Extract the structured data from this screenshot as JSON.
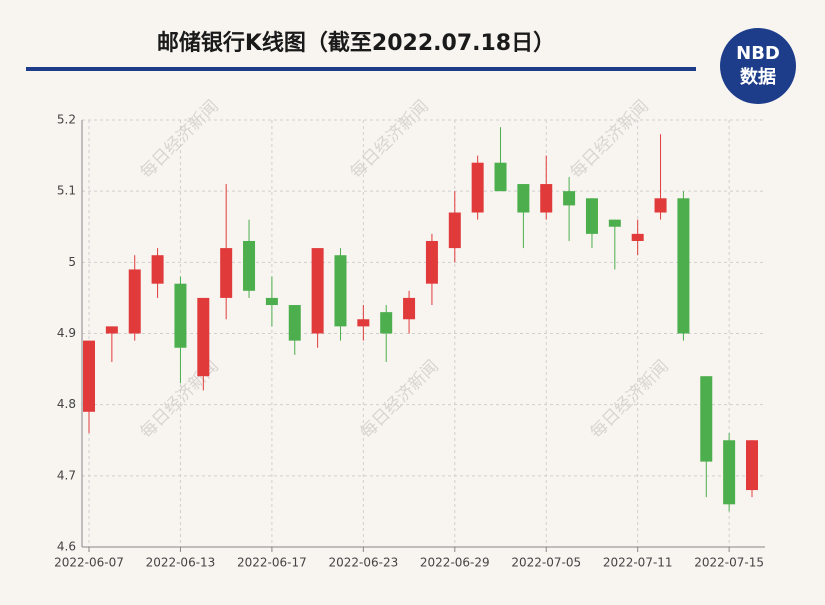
{
  "chart_data": {
    "type": "candlestick",
    "title": "邮储银行K线图（截至2022.07.18日）",
    "categories": [
      "2022-06-07",
      null,
      null,
      null,
      "2022-06-13",
      null,
      null,
      null,
      "2022-06-17",
      null,
      null,
      null,
      "2022-06-23",
      null,
      null,
      null,
      "2022-06-29",
      null,
      null,
      null,
      "2022-07-05",
      null,
      null,
      null,
      "2022-07-11",
      null,
      null,
      null,
      "2022-07-15",
      null
    ],
    "open": [
      4.79,
      4.9,
      4.9,
      4.97,
      4.97,
      4.84,
      4.95,
      5.03,
      4.95,
      4.94,
      4.9,
      5.01,
      4.91,
      4.93,
      4.92,
      4.97,
      5.02,
      5.07,
      5.14,
      5.11,
      5.07,
      5.1,
      5.09,
      5.06,
      5.03,
      5.07,
      5.09,
      4.84,
      4.75,
      4.68
    ],
    "high": [
      4.89,
      4.91,
      5.01,
      5.02,
      4.98,
      4.95,
      5.11,
      5.06,
      4.98,
      4.94,
      5.02,
      5.02,
      4.94,
      4.94,
      4.96,
      5.04,
      5.1,
      5.15,
      5.19,
      5.11,
      5.15,
      5.12,
      5.09,
      5.06,
      5.06,
      5.18,
      5.1,
      4.84,
      4.76,
      4.75
    ],
    "low": [
      4.76,
      4.86,
      4.89,
      4.95,
      4.83,
      4.82,
      4.92,
      4.95,
      4.91,
      4.87,
      4.88,
      4.89,
      4.89,
      4.86,
      4.9,
      4.94,
      5.0,
      5.06,
      5.1,
      5.02,
      5.06,
      5.03,
      5.02,
      4.99,
      5.01,
      5.06,
      4.89,
      4.67,
      4.65,
      4.67
    ],
    "close": [
      4.89,
      4.91,
      4.99,
      5.01,
      4.88,
      4.95,
      5.02,
      4.96,
      4.94,
      4.89,
      5.02,
      4.91,
      4.92,
      4.9,
      4.95,
      5.03,
      5.07,
      5.14,
      5.1,
      5.07,
      5.11,
      5.08,
      5.04,
      5.05,
      5.04,
      5.09,
      4.9,
      4.72,
      4.66,
      4.75
    ],
    "up_color": "#e03a3a",
    "down_color": "#4cae4c",
    "ylim": [
      4.6,
      5.2
    ],
    "yticks": [
      4.6,
      4.7,
      4.8,
      4.9,
      5,
      5.1,
      5.2
    ],
    "grid": true
  },
  "logo": {
    "top": "NBD",
    "bottom": "数据"
  },
  "watermark": "每日经济新闻"
}
